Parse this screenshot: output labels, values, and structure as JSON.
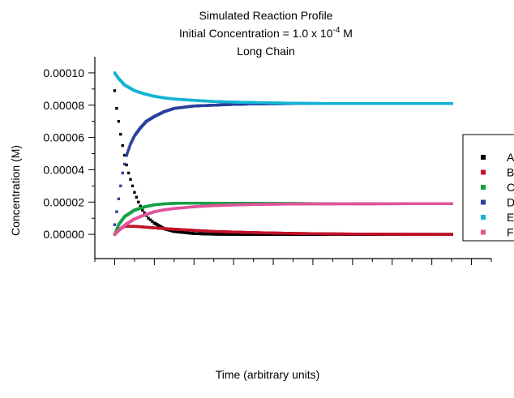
{
  "chart_data": {
    "type": "scatter",
    "title": [
      "Simulated Reaction Profile",
      "Initial Concentration = 1.0 x 10",
      "-4",
      " M",
      "Long Chain"
    ],
    "xlabel": "Time (arbitrary units)",
    "ylabel": "Concentration (M)",
    "xlim": [
      0,
      20
    ],
    "ylim": [
      -1.5e-05,
      0.00011
    ],
    "yticks": [
      0.0,
      2e-05,
      4e-05,
      6e-05,
      8e-05,
      0.0001
    ],
    "ytick_labels": [
      "0.00000",
      "0.00002",
      "0.00004",
      "0.00006",
      "0.00008",
      "0.00010"
    ],
    "xticks": [
      1,
      3,
      5,
      7,
      9,
      11,
      13,
      15,
      17,
      19
    ],
    "legend_position": "right",
    "series": [
      {
        "name": "A",
        "color": "#000000",
        "x": [
          1.0,
          1.1,
          1.2,
          1.3,
          1.4,
          1.5,
          1.6,
          1.7,
          1.8,
          1.9,
          2.0,
          2.2,
          2.4,
          2.7,
          3.0,
          3.5,
          4.0,
          5.0,
          6.0,
          8.0,
          10.0,
          14.0,
          18.0
        ],
        "y": [
          8.9e-05,
          7.8e-05,
          7e-05,
          6.2e-05,
          5.5e-05,
          4.9e-05,
          4.3e-05,
          3.8e-05,
          3.4e-05,
          3e-05,
          2.6e-05,
          2e-05,
          1.5e-05,
          1e-05,
          7e-06,
          3.5e-06,
          1.8e-06,
          5e-07,
          1e-07,
          0.0,
          0.0,
          0.0,
          0.0
        ]
      },
      {
        "name": "B",
        "color": "#c0122b",
        "x": [
          1.0,
          1.2,
          1.5,
          2.0,
          2.5,
          3.0,
          4.0,
          5.0,
          6.0,
          8.0,
          10.0,
          12.0,
          14.0,
          16.0,
          18.0
        ],
        "y": [
          0.0,
          3e-06,
          5e-06,
          5e-06,
          4.5e-06,
          4e-06,
          3.2e-06,
          2.5e-06,
          1.8e-06,
          1.1e-06,
          6e-07,
          3e-07,
          1.5e-07,
          5e-08,
          0.0
        ]
      },
      {
        "name": "C",
        "color": "#15a045",
        "x": [
          1.0,
          1.2,
          1.5,
          2.0,
          2.5,
          3.0,
          3.5,
          4.0,
          5.0,
          6.0,
          8.0,
          10.0,
          12.0,
          14.0,
          16.0,
          18.0
        ],
        "y": [
          0.0,
          6e-06,
          1.1e-05,
          1.5e-05,
          1.7e-05,
          1.83e-05,
          1.89e-05,
          1.92e-05,
          1.93e-05,
          1.93e-05,
          1.92e-05,
          1.91e-05,
          1.9e-05,
          1.9e-05,
          1.9e-05,
          1.9e-05
        ],
        "first_points": {
          "x": [
            1.0,
            1.1
          ],
          "y": [
            3e-06,
            8.5e-06
          ]
        }
      },
      {
        "name": "D",
        "color": "#2a3f9d",
        "x": [
          1.0,
          1.2,
          1.4,
          1.6,
          1.8,
          2.0,
          2.3,
          2.6,
          3.0,
          3.5,
          4.0,
          5.0,
          6.0,
          7.0,
          8.0,
          10.0,
          12.0,
          14.0,
          16.0,
          18.0
        ],
        "y": [
          6e-06,
          2.2e-05,
          3.8e-05,
          4.9e-05,
          5.6e-05,
          6.1e-05,
          6.6e-05,
          7e-05,
          7.3e-05,
          7.6e-05,
          7.8e-05,
          7.95e-05,
          8e-05,
          8.05e-05,
          8.08e-05,
          8.1e-05,
          8.1e-05,
          8.1e-05,
          8.1e-05,
          8.1e-05
        ]
      },
      {
        "name": "E",
        "color": "#12b5d4",
        "x": [
          1.0,
          1.2,
          1.5,
          2.0,
          2.5,
          3.0,
          3.5,
          4.0,
          5.0,
          6.0,
          7.0,
          8.0,
          10.0,
          12.0,
          14.0,
          16.0,
          18.0
        ],
        "y": [
          0.0001,
          9.65e-05,
          9.25e-05,
          8.9e-05,
          8.7e-05,
          8.55e-05,
          8.45e-05,
          8.38e-05,
          8.3e-05,
          8.23e-05,
          8.19e-05,
          8.16e-05,
          8.12e-05,
          8.1e-05,
          8.1e-05,
          8.1e-05,
          8.1e-05
        ]
      },
      {
        "name": "F",
        "color": "#e0559a",
        "x": [
          1.0,
          1.3,
          1.6,
          2.0,
          2.5,
          3.0,
          3.5,
          4.0,
          5.0,
          6.0,
          7.0,
          8.0,
          10.0,
          12.0,
          14.0,
          16.0,
          18.0
        ],
        "y": [
          0.0,
          3.5e-06,
          6.5e-06,
          9.5e-06,
          1.2e-05,
          1.4e-05,
          1.52e-05,
          1.6e-05,
          1.71e-05,
          1.78e-05,
          1.82e-05,
          1.85e-05,
          1.88e-05,
          1.89e-05,
          1.89e-05,
          1.9e-05,
          1.9e-05
        ]
      }
    ]
  }
}
